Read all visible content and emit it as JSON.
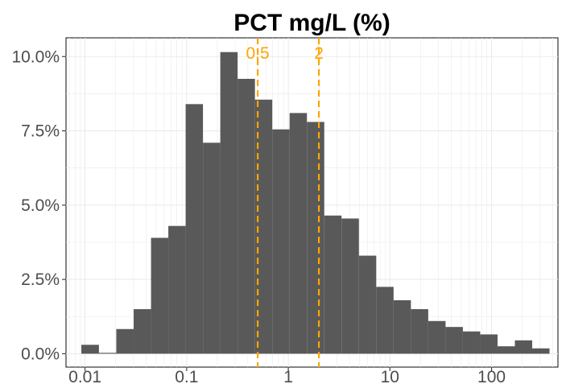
{
  "chart_data": {
    "type": "bar",
    "title": "PCT mg/L (%)",
    "xlabel": "",
    "ylabel": "",
    "x_scale": "log10",
    "xlim": [
      0.0065,
      450
    ],
    "ylim": [
      -0.0045,
      0.1063
    ],
    "x_ticks": [
      {
        "value": 0.01,
        "label": "0.01"
      },
      {
        "value": 0.1,
        "label": "0.1"
      },
      {
        "value": 1,
        "label": "1"
      },
      {
        "value": 10,
        "label": "10"
      },
      {
        "value": 100,
        "label": "100"
      }
    ],
    "y_ticks": [
      {
        "value": 0.0,
        "label": "0.0%"
      },
      {
        "value": 0.025,
        "label": "2.5%"
      },
      {
        "value": 0.05,
        "label": "5.0%"
      },
      {
        "value": 0.075,
        "label": "7.5%"
      },
      {
        "value": 0.1,
        "label": "10.0%"
      }
    ],
    "bins": [
      {
        "x0": 0.0092,
        "x1": 0.0137,
        "value": 0.003
      },
      {
        "x0": 0.0137,
        "x1": 0.0203,
        "value": 0.0003
      },
      {
        "x0": 0.0203,
        "x1": 0.0301,
        "value": 0.0083
      },
      {
        "x0": 0.0301,
        "x1": 0.0446,
        "value": 0.015
      },
      {
        "x0": 0.0446,
        "x1": 0.066,
        "value": 0.039
      },
      {
        "x0": 0.066,
        "x1": 0.0977,
        "value": 0.043
      },
      {
        "x0": 0.0977,
        "x1": 0.1447,
        "value": 0.084
      },
      {
        "x0": 0.1447,
        "x1": 0.2142,
        "value": 0.071
      },
      {
        "x0": 0.2142,
        "x1": 0.3172,
        "value": 0.1015
      },
      {
        "x0": 0.3172,
        "x1": 0.4697,
        "value": 0.0925
      },
      {
        "x0": 0.4697,
        "x1": 0.6956,
        "value": 0.0855
      },
      {
        "x0": 0.6956,
        "x1": 1.03,
        "value": 0.0755
      },
      {
        "x0": 1.03,
        "x1": 1.5252,
        "value": 0.081
      },
      {
        "x0": 1.5252,
        "x1": 2.2586,
        "value": 0.078
      },
      {
        "x0": 2.2586,
        "x1": 3.3446,
        "value": 0.0465
      },
      {
        "x0": 3.3446,
        "x1": 4.9528,
        "value": 0.0455
      },
      {
        "x0": 4.9528,
        "x1": 7.3342,
        "value": 0.033
      },
      {
        "x0": 7.3342,
        "x1": 10.8606,
        "value": 0.0225
      },
      {
        "x0": 10.8606,
        "x1": 16.0826,
        "value": 0.018
      },
      {
        "x0": 16.0826,
        "x1": 23.8152,
        "value": 0.015
      },
      {
        "x0": 23.8152,
        "x1": 35.2657,
        "value": 0.011
      },
      {
        "x0": 35.2657,
        "x1": 52.2218,
        "value": 0.009
      },
      {
        "x0": 52.2218,
        "x1": 77.3305,
        "value": 0.0075
      },
      {
        "x0": 77.3305,
        "x1": 114.5113,
        "value": 0.0065
      },
      {
        "x0": 114.5113,
        "x1": 169.569,
        "value": 0.0025
      },
      {
        "x0": 169.569,
        "x1": 251.0994,
        "value": 0.0045
      },
      {
        "x0": 251.0994,
        "x1": 371.83,
        "value": 0.0018
      }
    ],
    "reference_lines": [
      {
        "x": 0.5,
        "label": "0.5",
        "color": "#FFA500"
      },
      {
        "x": 2,
        "label": "2",
        "color": "#FFA500"
      }
    ],
    "bar_color": "#595959",
    "grid": true
  }
}
